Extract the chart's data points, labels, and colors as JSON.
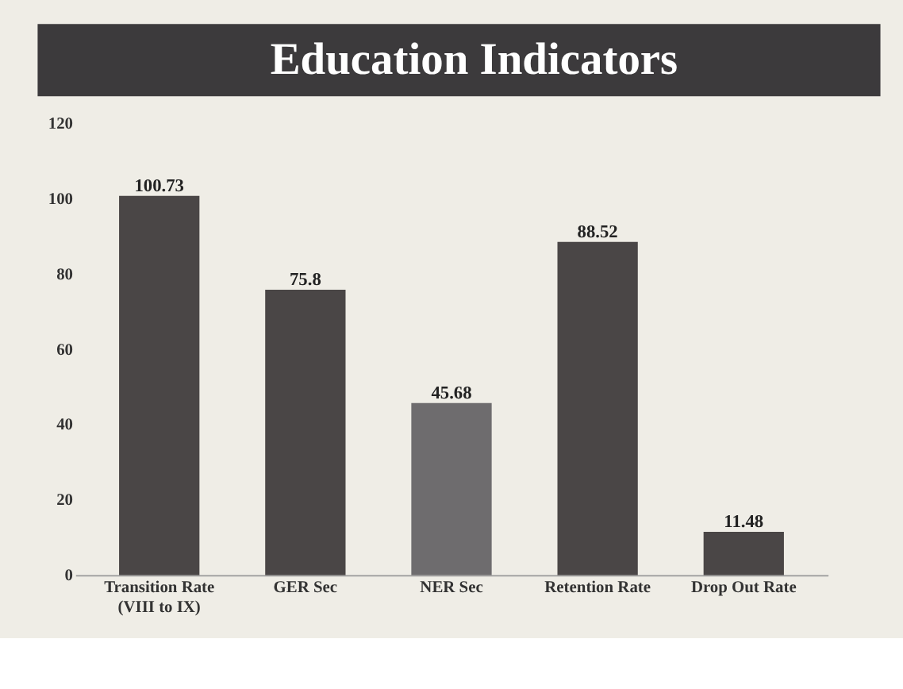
{
  "chart_data": {
    "type": "bar",
    "title": "Education Indicators",
    "categories": [
      "Transition Rate\n(VIII to IX)",
      "GER Sec",
      "NER Sec",
      "Retention Rate",
      "Drop Out Rate"
    ],
    "values": [
      100.73,
      75.8,
      45.68,
      88.52,
      11.48
    ],
    "colors": [
      "#4a4646",
      "#4a4646",
      "#6e6c6e",
      "#4a4646",
      "#4a4646"
    ],
    "ylim": [
      0,
      120
    ],
    "yticks": [
      0,
      20,
      40,
      60,
      80,
      100,
      120
    ],
    "grid": false,
    "data_labels": true
  }
}
